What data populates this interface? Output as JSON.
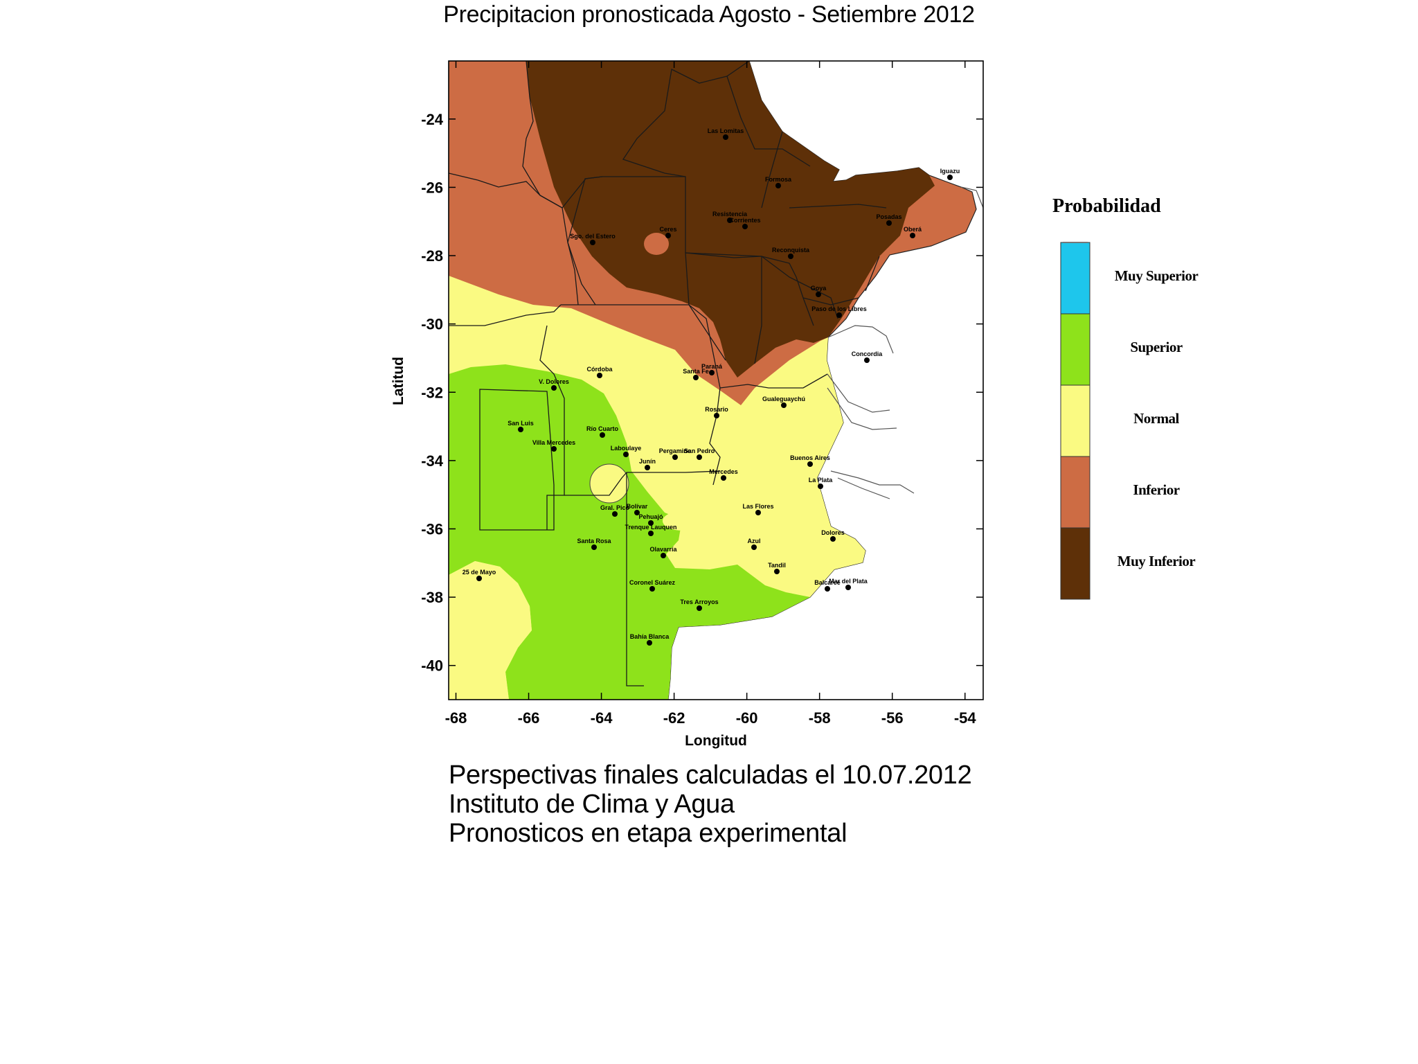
{
  "title": "Precipitacion pronosticada Agosto - Setiembre 2012",
  "map": {
    "x_axis": {
      "label": "Longitud",
      "ticks": [
        "-68",
        "-66",
        "-64",
        "-62",
        "-60",
        "-58",
        "-56",
        "-54"
      ]
    },
    "y_axis": {
      "label": "Latitud",
      "ticks": [
        "-24",
        "-26",
        "-28",
        "-30",
        "-32",
        "-34",
        "-36",
        "-38",
        "-40"
      ]
    },
    "longitude_range": [
      -68.2,
      -53.5
    ],
    "latitude_range": [
      -22.3,
      -41.0
    ],
    "cities": [
      "Las Lomitas",
      "Formosa",
      "Resistencia",
      "Corrientes",
      "Posadas",
      "Iguazu",
      "Oberá",
      "Sgo. del Estero",
      "Ceres",
      "Reconquista",
      "Goya",
      "Paso de los Libres",
      "Concordia",
      "Paraná",
      "Santa Fe",
      "Rosario",
      "Gualeguaychú",
      "Córdoba",
      "V. Dolores",
      "Río Cuarto",
      "San Luis",
      "Villa Mercedes",
      "Laboulaye",
      "Junín",
      "Pergamino",
      "San Pedro",
      "Mercedes",
      "La Plata",
      "Buenos Aires",
      "Dolores",
      "Las Flores",
      "Azul",
      "Tandil",
      "Olavarría",
      "Bolívar",
      "Pehuajó",
      "Trenque Lauquen",
      "Gral. Pico",
      "Santa Rosa",
      "Coronel Suárez",
      "Tres Arroyos",
      "Balcarce",
      "Mar del Plata",
      "Bahía Blanca",
      "25 de Mayo"
    ]
  },
  "legend": {
    "title": "Probabilidad",
    "categories": [
      {
        "label": "Muy Superior",
        "color": "#1ec6ec"
      },
      {
        "label": "Superior",
        "color": "#8ee21b"
      },
      {
        "label": "Normal",
        "color": "#fafa82"
      },
      {
        "label": "Inferior",
        "color": "#cd6c44"
      },
      {
        "label": "Muy Inferior",
        "color": "#5e3008"
      }
    ]
  },
  "footer": {
    "line1": "Perspectivas finales calculadas  el 10.07.2012",
    "line2": "Instituto de Clima y Agua",
    "line3": "Pronosticos en etapa experimental"
  }
}
